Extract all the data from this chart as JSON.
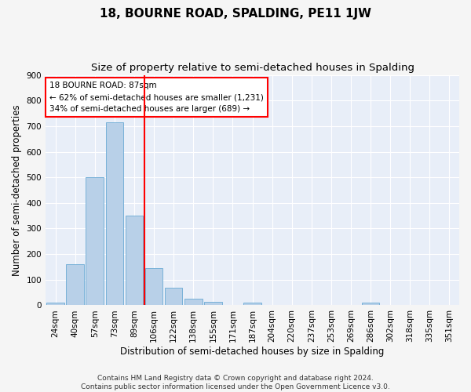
{
  "title": "18, BOURNE ROAD, SPALDING, PE11 1JW",
  "subtitle": "Size of property relative to semi-detached houses in Spalding",
  "xlabel": "Distribution of semi-detached houses by size in Spalding",
  "ylabel": "Number of semi-detached properties",
  "categories": [
    "24sqm",
    "40sqm",
    "57sqm",
    "73sqm",
    "89sqm",
    "106sqm",
    "122sqm",
    "138sqm",
    "155sqm",
    "171sqm",
    "187sqm",
    "204sqm",
    "220sqm",
    "237sqm",
    "253sqm",
    "269sqm",
    "286sqm",
    "302sqm",
    "318sqm",
    "335sqm",
    "351sqm"
  ],
  "values": [
    10,
    160,
    500,
    715,
    350,
    145,
    70,
    25,
    15,
    0,
    12,
    0,
    0,
    0,
    0,
    0,
    10,
    0,
    0,
    0,
    0
  ],
  "bar_color": "#b8d0e8",
  "bar_edgecolor": "#6aaad4",
  "annotation_text": "18 BOURNE ROAD: 87sqm\n← 62% of semi-detached houses are smaller (1,231)\n34% of semi-detached houses are larger (689) →",
  "ylim": [
    0,
    900
  ],
  "yticks": [
    0,
    100,
    200,
    300,
    400,
    500,
    600,
    700,
    800,
    900
  ],
  "footer": "Contains HM Land Registry data © Crown copyright and database right 2024.\nContains public sector information licensed under the Open Government Licence v3.0.",
  "plot_bg_color": "#e8eef8",
  "grid_color": "#ffffff",
  "fig_bg_color": "#f5f5f5",
  "title_fontsize": 11,
  "subtitle_fontsize": 9.5,
  "axis_label_fontsize": 8.5,
  "tick_fontsize": 7.5,
  "annotation_fontsize": 7.5,
  "footer_fontsize": 6.5,
  "red_line_index": 4.5
}
